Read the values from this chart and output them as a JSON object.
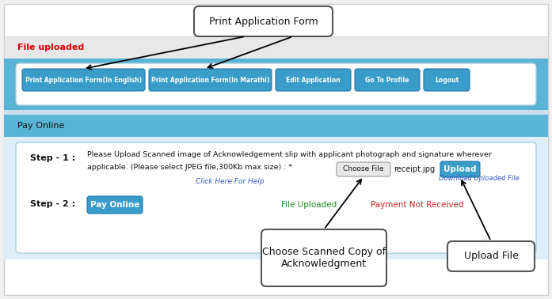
{
  "bg_color": "#f0f0f0",
  "white": "#ffffff",
  "blue_bar_color": "#5ab4d6",
  "section_light": "#c8e6f5",
  "inner_box_bg": "#ddeef8",
  "button_color": "#3a9cc8",
  "button_text_color": "#ffffff",
  "choose_file_bg": "#e8e8e8",
  "upload_btn_color": "#3a9cc8",
  "file_uploaded_label": "File uploaded",
  "file_uploaded_color": "#dd0000",
  "pay_online_label": "Pay Online",
  "buttons": [
    "Print Application Form(In English)",
    "Print Application Form(In Marathi)",
    "Edit Application",
    "Go To Profile",
    "Logout"
  ],
  "btn_widths": [
    155,
    155,
    95,
    82,
    58
  ],
  "step1_line1": "Please Upload Scanned image of Acknowledgement slip with applicant photograph and signature wherever",
  "step1_line2": "applicable. (Please select JPEG file,300Kb max size) : *",
  "step1_label": "Step - 1 :",
  "step2_label": "Step - 2 :",
  "choose_file_text": "Choose File",
  "receipt_text": "receipt.jpg",
  "upload_text": "Upload",
  "click_here_text": "Click Here For Help",
  "click_here_color": "#3355cc",
  "download_text": "Download Uploaded File",
  "download_color": "#3355cc",
  "file_uploaded_status": "File Uploaded",
  "file_uploaded_status_color": "#228822",
  "payment_not_received": "Payment Not Received",
  "payment_color": "#cc2222",
  "pay_online_btn": "Pay Online",
  "ann1_text": "Print Application Form",
  "ann2_text": "Choose Scanned Copy of\nAcknowledgment",
  "ann3_text": "Upload File",
  "ann_box_color": "#ffffff",
  "ann_border_color": "#555555"
}
